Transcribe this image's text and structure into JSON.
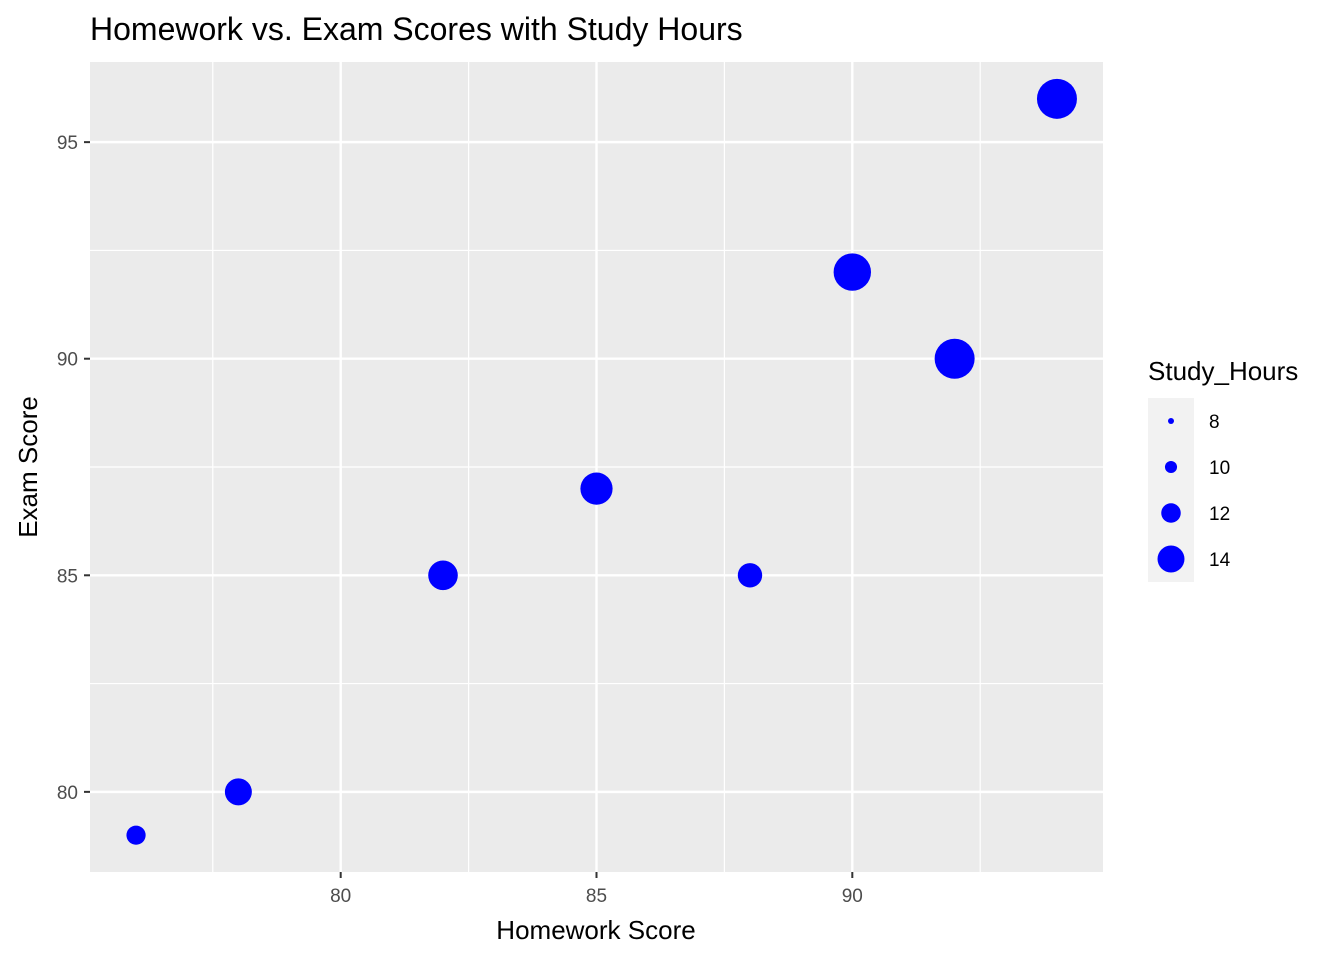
{
  "chart_data": {
    "type": "scatter",
    "title": "Homework vs. Exam Scores with Study Hours",
    "xlabel": "Homework Score",
    "ylabel": "Exam Score",
    "xlim": [
      75.1,
      94.9
    ],
    "ylim": [
      78.15,
      96.85
    ],
    "x_ticks": [
      80,
      85,
      90
    ],
    "y_ticks": [
      80,
      85,
      90,
      95
    ],
    "grid": true,
    "legend": {
      "title": "Study_Hours",
      "position": "right",
      "entries": [
        {
          "label": "8",
          "value": 8
        },
        {
          "label": "10",
          "value": 10
        },
        {
          "label": "12",
          "value": 12
        },
        {
          "label": "14",
          "value": 14
        }
      ]
    },
    "size_range": [
      7,
      15
    ],
    "point_color": "#0000FF",
    "points": [
      {
        "x": 76,
        "y": 79,
        "size": 7
      },
      {
        "x": 78,
        "y": 80,
        "size": 10
      },
      {
        "x": 82,
        "y": 85,
        "size": 11
      },
      {
        "x": 85,
        "y": 87,
        "size": 12
      },
      {
        "x": 88,
        "y": 85,
        "size": 9
      },
      {
        "x": 90,
        "y": 92,
        "size": 14
      },
      {
        "x": 92,
        "y": 90,
        "size": 15
      },
      {
        "x": 94,
        "y": 96,
        "size": 15
      }
    ]
  },
  "colors": {
    "panel_background": "#EBEBEB",
    "grid_line": "#FFFFFF",
    "point": "#0000FF"
  }
}
